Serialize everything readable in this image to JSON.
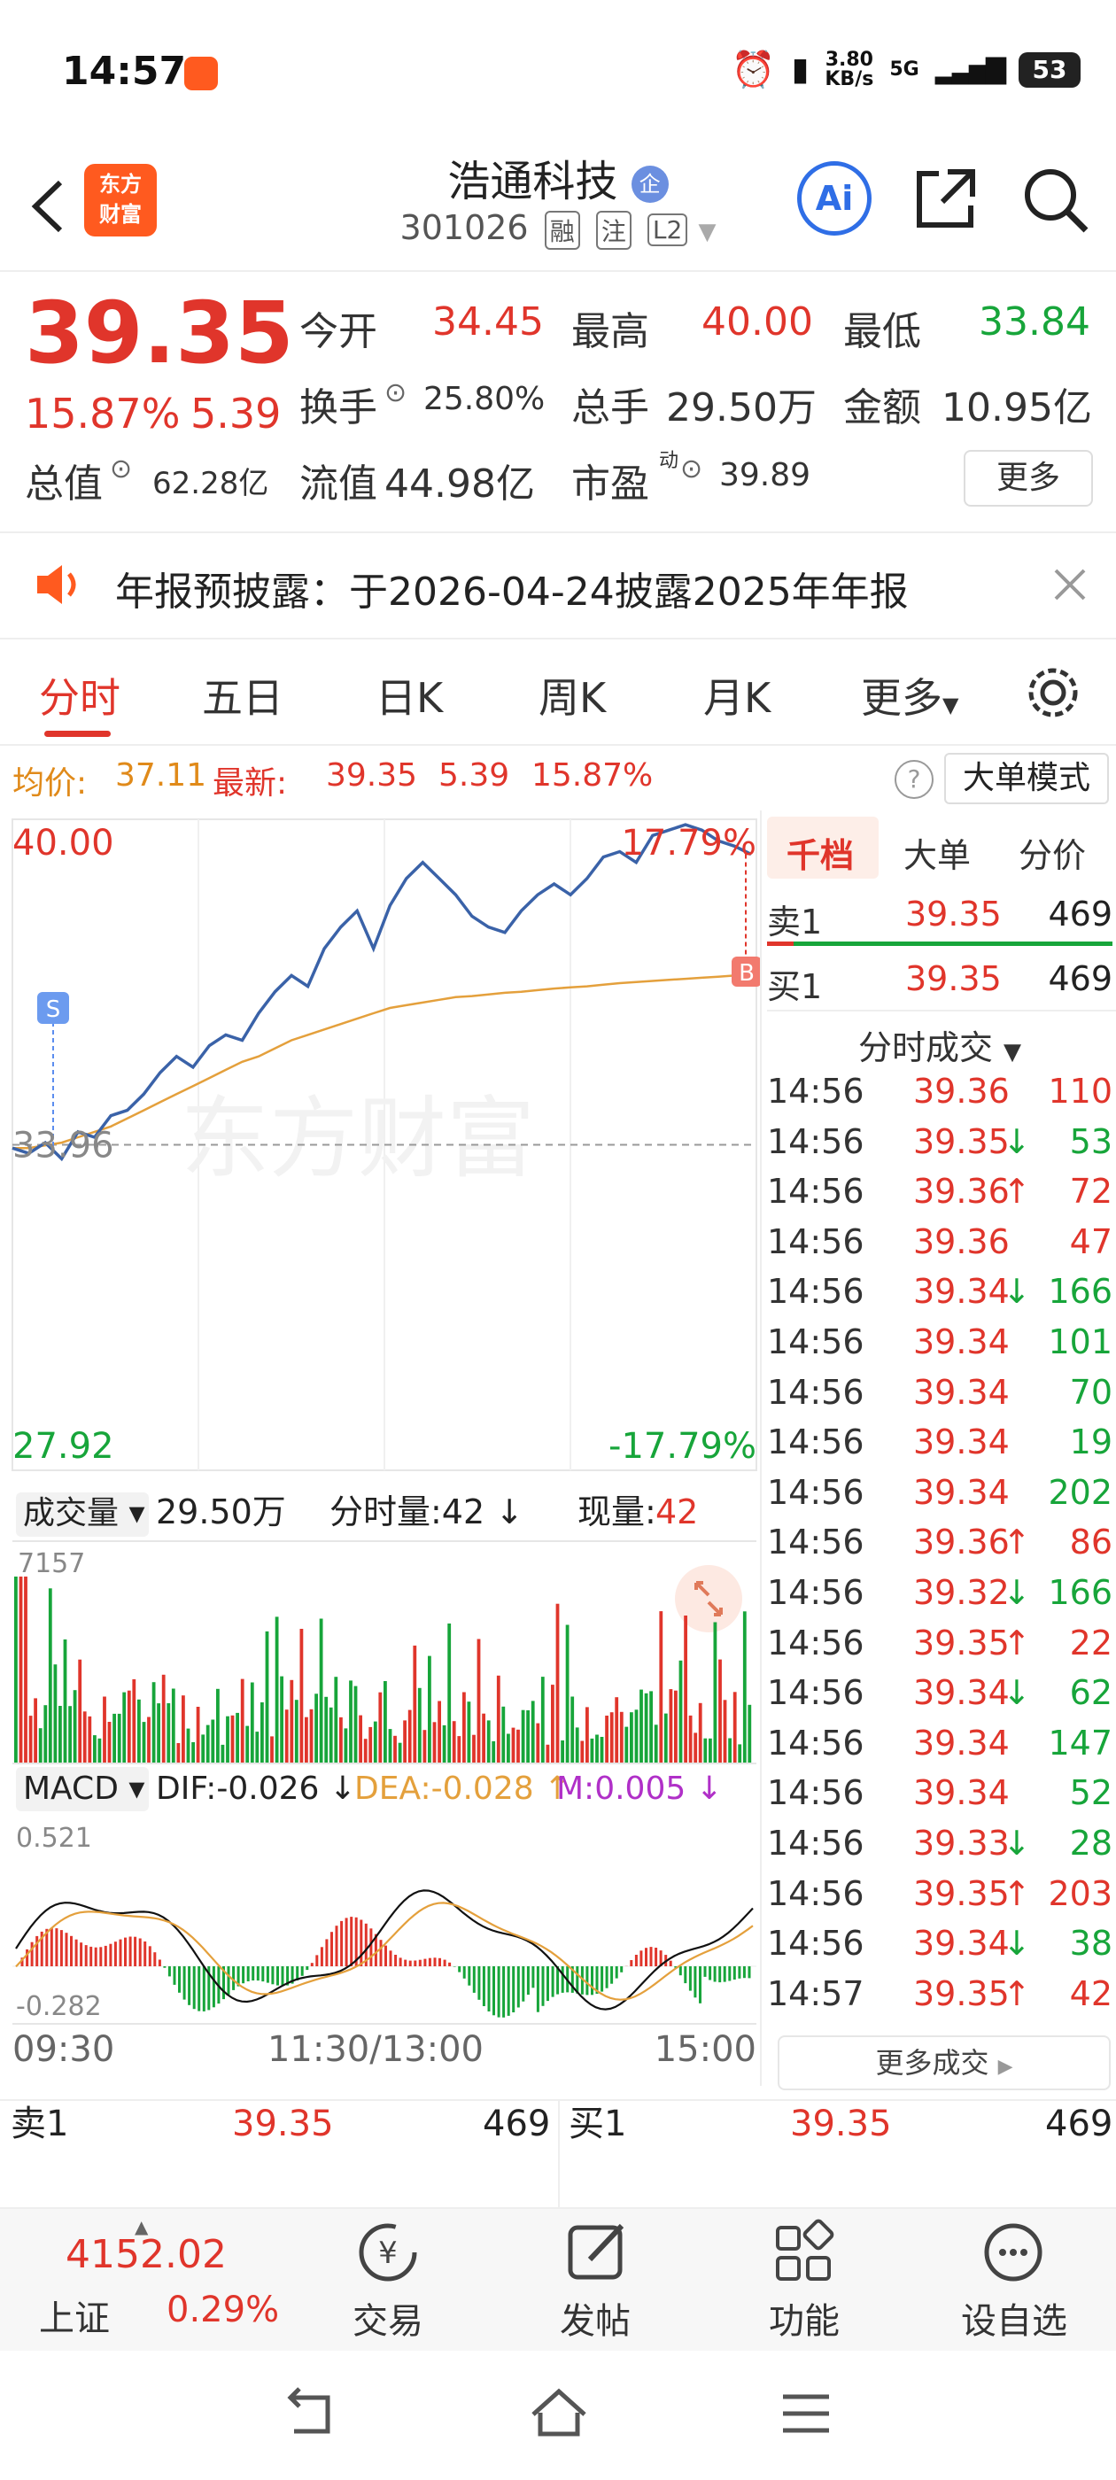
{
  "status": {
    "time": "14:57",
    "net_speed": "3.80",
    "net_unit": "KB/s",
    "net_type": "5G",
    "battery": "53"
  },
  "header": {
    "stock_name": "浩通科技",
    "stock_badge": "企",
    "stock_code": "301026",
    "tags": [
      "融",
      "注",
      "L2"
    ],
    "logo_line1": "东方",
    "logo_line2": "财富",
    "ai_label": "Ai"
  },
  "quote": {
    "price": "39.35",
    "change_pct": "15.87%",
    "change": "5.39",
    "open_label": "今开",
    "open": "34.45",
    "high_label": "最高",
    "high": "40.00",
    "low_label": "最低",
    "low": "33.84",
    "turnover_label": "换手",
    "turnover": "25.80%",
    "volume_label": "总手",
    "volume": "29.50万",
    "amount_label": "金额",
    "amount": "10.95亿",
    "mktcap_label": "总值",
    "mktcap": "62.28亿",
    "float_label": "流值",
    "float": "44.98亿",
    "pe_label": "市盈",
    "pe_sup": "动",
    "pe": "39.89",
    "more": "更多"
  },
  "notice": {
    "text": "年报预披露：于2026-04-24披露2025年年报"
  },
  "tabs": [
    "分时",
    "五日",
    "日K",
    "周K",
    "月K",
    "更多"
  ],
  "info": {
    "avg_label": "均价:",
    "avg": "37.11",
    "latest_label": "最新:",
    "latest": "39.35",
    "chg": "5.39",
    "pct": "15.87%",
    "mode_btn": "大单模式"
  },
  "chart": {
    "top_price": "40.00",
    "top_pct": "17.79%",
    "prev_close": "33.96",
    "bottom_price": "27.92",
    "bottom_pct": "-17.79%",
    "marker_s": "S",
    "marker_b": "B",
    "watermark": "东方财富",
    "vol_label": "成交量",
    "vol_total": "29.50万",
    "vol_min_label": "分时量:42",
    "vol_min_arrow": "↓",
    "vol_now_label": "现量:",
    "vol_now": "42",
    "vol_max": "7157",
    "macd_label": "MACD",
    "dif": "DIF:-0.026",
    "dif_arrow": "↓",
    "dea": "DEA:-0.028",
    "dea_arrow": "↑",
    "m": "M:0.005",
    "m_arrow": "↓",
    "macd_top": "0.521",
    "macd_bottom": "-0.282",
    "x_start": "09:30",
    "x_mid": "11:30/13:00",
    "x_end": "15:00",
    "colors": {
      "price_line": "#3a62a8",
      "avg_line": "#e4a03c",
      "up": "#e0352b",
      "down": "#17a53a",
      "dif": "#111111",
      "dea": "#e4a03c"
    }
  },
  "chart_data": {
    "type": "line",
    "x_labels": [
      "09:30",
      "11:30/13:00",
      "15:00"
    ],
    "ylim": [
      27.92,
      40.0
    ],
    "prev_close": 33.96,
    "series": [
      {
        "name": "",
        "values": [
          33.9,
          33.8,
          34.0,
          33.7,
          34.2,
          34.1,
          34.5,
          34.6,
          34.9,
          35.3,
          35.6,
          35.4,
          35.8,
          36.0,
          35.9,
          36.4,
          36.8,
          37.1,
          36.9,
          37.6,
          38.0,
          38.3,
          37.6,
          38.4,
          38.9,
          39.2,
          38.9,
          38.6,
          38.2,
          38.0,
          37.9,
          38.3,
          38.6,
          38.8,
          38.6,
          38.9,
          39.3,
          39.4,
          39.2,
          39.7,
          39.8,
          39.9,
          39.8,
          39.6,
          39.5,
          39.35
        ]
      },
      {
        "name": "",
        "values": [
          33.9,
          33.9,
          33.95,
          34.0,
          34.1,
          34.2,
          34.3,
          34.45,
          34.6,
          34.75,
          34.9,
          35.05,
          35.2,
          35.35,
          35.5,
          35.6,
          35.75,
          35.9,
          36.0,
          36.1,
          36.2,
          36.3,
          36.4,
          36.5,
          36.55,
          36.6,
          36.65,
          36.7,
          36.72,
          36.75,
          36.78,
          36.8,
          36.83,
          36.86,
          36.88,
          36.9,
          36.93,
          36.96,
          36.98,
          37.0,
          37.02,
          37.04,
          37.06,
          37.08,
          37.1,
          37.11
        ]
      }
    ],
    "volume_max": 7157,
    "macd_range": [
      -0.282,
      0.521
    ]
  },
  "panel": {
    "tabs": [
      "千档",
      "大单",
      "分价"
    ],
    "sell1_label": "卖1",
    "sell1_price": "39.35",
    "sell1_vol": "469",
    "buy1_label": "买1",
    "buy1_price": "39.35",
    "buy1_vol": "469",
    "ticks_title": "分时成交",
    "ticks": [
      {
        "t": "14:56",
        "p": "39.36",
        "a": "",
        "v": "110",
        "vc": "red"
      },
      {
        "t": "14:56",
        "p": "39.35",
        "a": "↓",
        "v": "53",
        "vc": "green"
      },
      {
        "t": "14:56",
        "p": "39.36",
        "a": "↑",
        "v": "72",
        "vc": "red"
      },
      {
        "t": "14:56",
        "p": "39.36",
        "a": "",
        "v": "47",
        "vc": "red"
      },
      {
        "t": "14:56",
        "p": "39.34",
        "a": "↓",
        "v": "166",
        "vc": "green"
      },
      {
        "t": "14:56",
        "p": "39.34",
        "a": "",
        "v": "101",
        "vc": "green"
      },
      {
        "t": "14:56",
        "p": "39.34",
        "a": "",
        "v": "70",
        "vc": "green"
      },
      {
        "t": "14:56",
        "p": "39.34",
        "a": "",
        "v": "19",
        "vc": "green"
      },
      {
        "t": "14:56",
        "p": "39.34",
        "a": "",
        "v": "202",
        "vc": "green"
      },
      {
        "t": "14:56",
        "p": "39.36",
        "a": "↑",
        "v": "86",
        "vc": "red"
      },
      {
        "t": "14:56",
        "p": "39.32",
        "a": "↓",
        "v": "166",
        "vc": "green"
      },
      {
        "t": "14:56",
        "p": "39.35",
        "a": "↑",
        "v": "22",
        "vc": "red"
      },
      {
        "t": "14:56",
        "p": "39.34",
        "a": "↓",
        "v": "62",
        "vc": "green"
      },
      {
        "t": "14:56",
        "p": "39.34",
        "a": "",
        "v": "147",
        "vc": "green"
      },
      {
        "t": "14:56",
        "p": "39.34",
        "a": "",
        "v": "52",
        "vc": "green"
      },
      {
        "t": "14:56",
        "p": "39.33",
        "a": "↓",
        "v": "28",
        "vc": "green"
      },
      {
        "t": "14:56",
        "p": "39.35",
        "a": "↑",
        "v": "203",
        "vc": "red"
      },
      {
        "t": "14:56",
        "p": "39.34",
        "a": "↓",
        "v": "38",
        "vc": "green"
      },
      {
        "t": "14:57",
        "p": "39.35",
        "a": "↑",
        "v": "42",
        "vc": "red"
      }
    ],
    "more_ticks": "更多成交"
  },
  "orderbar": {
    "sell_label": "卖1",
    "sell_price": "39.35",
    "sell_vol": "469",
    "buy_label": "买1",
    "buy_price": "39.35",
    "buy_vol": "469"
  },
  "bottom": {
    "index_value": "4152.02",
    "index_name": "上证",
    "index_pct": "0.29%",
    "trade": "交易",
    "post": "发帖",
    "func": "功能",
    "watch": "设自选"
  }
}
